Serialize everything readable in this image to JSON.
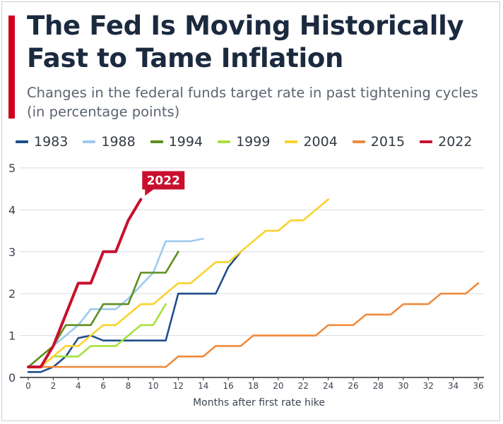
{
  "header": {
    "title": "The Fed Is Moving Historically Fast to Tame Inflation",
    "subtitle": "Changes in the federal funds target rate in past tightening cycles (in percentage points)"
  },
  "colors": {
    "accent": "#d0021b",
    "grid": "#d6dbe2",
    "axis": "#2b2b2b",
    "text": "#3c4450",
    "callout_bg": "#c8102e"
  },
  "chart_data": {
    "type": "line",
    "title": "The Fed Is Moving Historically Fast to Tame Inflation",
    "subtitle": "Changes in the federal funds target rate in past tightening cycles (in percentage points)",
    "xlabel": "Months after first rate hike",
    "ylabel": "",
    "xlim": [
      0,
      36
    ],
    "ylim": [
      0,
      5
    ],
    "x_ticks": [
      "0",
      "2",
      "4",
      "6",
      "8",
      "10",
      "12",
      "14",
      "16",
      "18",
      "20",
      "22",
      "24",
      "26",
      "28",
      "30",
      "32",
      "34",
      "36"
    ],
    "y_ticks": [
      "0",
      "1",
      "2",
      "3",
      "4",
      "5"
    ],
    "grid": true,
    "legend_position": "top",
    "callout": {
      "series": "2022",
      "label": "2022"
    },
    "series": [
      {
        "name": "1983",
        "color": "#1f4e8c",
        "points": [
          [
            0,
            0.13
          ],
          [
            1,
            0.13
          ],
          [
            2,
            0.25
          ],
          [
            3,
            0.5
          ],
          [
            4,
            0.94
          ],
          [
            5,
            1.0
          ],
          [
            6,
            0.88
          ],
          [
            7,
            0.88
          ],
          [
            8,
            0.88
          ],
          [
            9,
            0.88
          ],
          [
            10,
            0.88
          ],
          [
            11,
            0.88
          ],
          [
            12,
            2.0
          ],
          [
            13,
            2.0
          ],
          [
            14,
            2.0
          ],
          [
            15,
            2.0
          ],
          [
            16,
            2.63
          ],
          [
            17,
            3.0
          ]
        ]
      },
      {
        "name": "1988",
        "color": "#9ec9ef",
        "points": [
          [
            0,
            0.25
          ],
          [
            1,
            0.5
          ],
          [
            2,
            0.75
          ],
          [
            3,
            1.0
          ],
          [
            4,
            1.25
          ],
          [
            5,
            1.63
          ],
          [
            6,
            1.63
          ],
          [
            7,
            1.63
          ],
          [
            8,
            1.88
          ],
          [
            9,
            2.19
          ],
          [
            10,
            2.5
          ],
          [
            11,
            3.25
          ],
          [
            12,
            3.25
          ],
          [
            13,
            3.25
          ],
          [
            14,
            3.31
          ]
        ]
      },
      {
        "name": "1994",
        "color": "#5e8f1f",
        "points": [
          [
            0,
            0.25
          ],
          [
            1,
            0.5
          ],
          [
            2,
            0.75
          ],
          [
            3,
            1.25
          ],
          [
            4,
            1.25
          ],
          [
            5,
            1.25
          ],
          [
            6,
            1.75
          ],
          [
            7,
            1.75
          ],
          [
            8,
            1.75
          ],
          [
            9,
            2.5
          ],
          [
            10,
            2.5
          ],
          [
            11,
            2.5
          ],
          [
            12,
            3.0
          ]
        ]
      },
      {
        "name": "1999",
        "color": "#a6e13c",
        "points": [
          [
            0,
            0.25
          ],
          [
            1,
            0.25
          ],
          [
            2,
            0.5
          ],
          [
            3,
            0.5
          ],
          [
            4,
            0.5
          ],
          [
            5,
            0.75
          ],
          [
            6,
            0.75
          ],
          [
            7,
            0.75
          ],
          [
            8,
            1.0
          ],
          [
            9,
            1.25
          ],
          [
            10,
            1.25
          ],
          [
            11,
            1.75
          ]
        ]
      },
      {
        "name": "2004",
        "color": "#f9d22e",
        "points": [
          [
            0,
            0.25
          ],
          [
            1,
            0.25
          ],
          [
            2,
            0.5
          ],
          [
            3,
            0.75
          ],
          [
            4,
            0.75
          ],
          [
            5,
            1.0
          ],
          [
            6,
            1.25
          ],
          [
            7,
            1.25
          ],
          [
            8,
            1.5
          ],
          [
            9,
            1.75
          ],
          [
            10,
            1.75
          ],
          [
            11,
            2.0
          ],
          [
            12,
            2.25
          ],
          [
            13,
            2.25
          ],
          [
            14,
            2.5
          ],
          [
            15,
            2.75
          ],
          [
            16,
            2.75
          ],
          [
            17,
            3.0
          ],
          [
            18,
            3.25
          ],
          [
            19,
            3.5
          ],
          [
            20,
            3.5
          ],
          [
            21,
            3.75
          ],
          [
            22,
            3.75
          ],
          [
            23,
            4.0
          ],
          [
            24,
            4.25
          ]
        ]
      },
      {
        "name": "2015",
        "color": "#f08a3c",
        "points": [
          [
            0,
            0.25
          ],
          [
            11,
            0.25
          ],
          [
            12,
            0.5
          ],
          [
            13,
            0.5
          ],
          [
            14,
            0.5
          ],
          [
            15,
            0.75
          ],
          [
            16,
            0.75
          ],
          [
            17,
            0.75
          ],
          [
            18,
            1.0
          ],
          [
            19,
            1.0
          ],
          [
            20,
            1.0
          ],
          [
            21,
            1.0
          ],
          [
            22,
            1.0
          ],
          [
            23,
            1.0
          ],
          [
            24,
            1.25
          ],
          [
            25,
            1.25
          ],
          [
            26,
            1.25
          ],
          [
            27,
            1.5
          ],
          [
            28,
            1.5
          ],
          [
            29,
            1.5
          ],
          [
            30,
            1.75
          ],
          [
            31,
            1.75
          ],
          [
            32,
            1.75
          ],
          [
            33,
            2.0
          ],
          [
            34,
            2.0
          ],
          [
            35,
            2.0
          ],
          [
            36,
            2.25
          ]
        ]
      },
      {
        "name": "2022",
        "color": "#c8102e",
        "points": [
          [
            0,
            0.25
          ],
          [
            1,
            0.25
          ],
          [
            2,
            0.75
          ],
          [
            3,
            1.5
          ],
          [
            4,
            2.25
          ],
          [
            5,
            2.25
          ],
          [
            6,
            3.0
          ],
          [
            7,
            3.0
          ],
          [
            8,
            3.75
          ],
          [
            9,
            4.25
          ]
        ]
      }
    ]
  }
}
